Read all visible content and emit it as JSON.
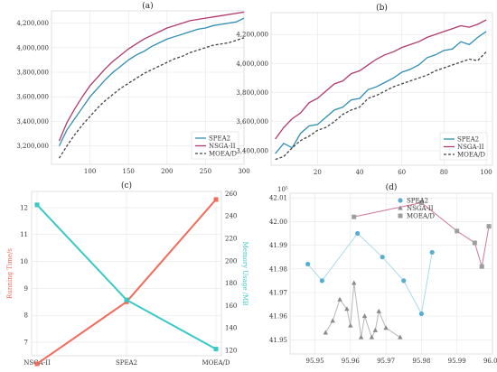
{
  "chart_data": [
    {
      "id": "a",
      "type": "line",
      "title": "(a)",
      "xlabel": "",
      "ylabel": "",
      "xlim": [
        50,
        300
      ],
      "ylim": [
        3050000,
        4300000
      ],
      "xticks": [
        100,
        150,
        200,
        250,
        300
      ],
      "yticks": [
        3200000,
        3400000,
        3600000,
        3800000,
        4000000,
        4200000
      ],
      "ytick_labels": [
        "3,200,000",
        "3,400,000",
        "3,600,000",
        "3,800,000",
        "4,000,000",
        "4,200,000"
      ],
      "grid": true,
      "legend": "bottom-right",
      "x": [
        60,
        70,
        80,
        90,
        100,
        110,
        120,
        130,
        140,
        150,
        160,
        170,
        180,
        190,
        200,
        210,
        220,
        230,
        240,
        250,
        260,
        270,
        280,
        290,
        300
      ],
      "series": [
        {
          "name": "SPEA2",
          "color": "#2f8db3",
          "dash": "solid",
          "values": [
            3200000,
            3330000,
            3420000,
            3510000,
            3600000,
            3670000,
            3740000,
            3800000,
            3850000,
            3900000,
            3940000,
            3970000,
            4010000,
            4040000,
            4070000,
            4090000,
            4110000,
            4130000,
            4150000,
            4160000,
            4180000,
            4190000,
            4200000,
            4210000,
            4240000
          ]
        },
        {
          "name": "NSGA-II",
          "color": "#b03a6e",
          "dash": "solid",
          "values": [
            3240000,
            3390000,
            3500000,
            3600000,
            3690000,
            3760000,
            3830000,
            3890000,
            3940000,
            3990000,
            4030000,
            4070000,
            4100000,
            4130000,
            4160000,
            4180000,
            4200000,
            4220000,
            4230000,
            4240000,
            4250000,
            4260000,
            4270000,
            4280000,
            4290000
          ]
        },
        {
          "name": "MOEA/D",
          "color": "#444444",
          "dash": "dashed",
          "values": [
            3100000,
            3200000,
            3290000,
            3370000,
            3440000,
            3510000,
            3570000,
            3620000,
            3670000,
            3710000,
            3750000,
            3790000,
            3820000,
            3850000,
            3880000,
            3910000,
            3930000,
            3960000,
            3980000,
            4000000,
            4020000,
            4030000,
            4040000,
            4060000,
            4080000
          ]
        }
      ]
    },
    {
      "id": "b",
      "type": "line",
      "title": "(b)",
      "xlabel": "",
      "ylabel": "",
      "xlim": [
        -2,
        103
      ],
      "ylim": [
        3300000,
        4350000
      ],
      "xticks": [
        20,
        40,
        60,
        80,
        100
      ],
      "yticks": [
        3400000,
        3600000,
        3800000,
        4000000,
        4200000
      ],
      "ytick_labels": [
        "3,400,000",
        "3,600,000",
        "3,800,000",
        "4,000,000",
        "4,200,000"
      ],
      "grid": true,
      "legend": "bottom-right",
      "x": [
        0,
        4,
        8,
        12,
        16,
        20,
        24,
        28,
        32,
        36,
        40,
        44,
        48,
        52,
        56,
        60,
        64,
        68,
        72,
        76,
        80,
        84,
        88,
        92,
        96,
        100
      ],
      "series": [
        {
          "name": "SPEA2",
          "color": "#2f8db3",
          "dash": "solid",
          "values": [
            3380000,
            3450000,
            3420000,
            3520000,
            3570000,
            3580000,
            3630000,
            3680000,
            3700000,
            3750000,
            3760000,
            3820000,
            3840000,
            3870000,
            3900000,
            3940000,
            3960000,
            3990000,
            4040000,
            4060000,
            4090000,
            4100000,
            4150000,
            4130000,
            4180000,
            4220000
          ]
        },
        {
          "name": "NSGA-II",
          "color": "#b03a6e",
          "dash": "solid",
          "values": [
            3480000,
            3560000,
            3620000,
            3660000,
            3730000,
            3760000,
            3810000,
            3860000,
            3880000,
            3930000,
            3950000,
            3990000,
            4030000,
            4060000,
            4080000,
            4110000,
            4130000,
            4150000,
            4180000,
            4200000,
            4220000,
            4240000,
            4260000,
            4250000,
            4270000,
            4300000
          ]
        },
        {
          "name": "MOEA/D",
          "color": "#444444",
          "dash": "dashed",
          "values": [
            3340000,
            3360000,
            3420000,
            3470000,
            3500000,
            3540000,
            3560000,
            3600000,
            3650000,
            3680000,
            3700000,
            3760000,
            3780000,
            3810000,
            3840000,
            3860000,
            3880000,
            3900000,
            3920000,
            3950000,
            3970000,
            3990000,
            4010000,
            4030000,
            4020000,
            4080000
          ]
        }
      ]
    },
    {
      "id": "c",
      "type": "line",
      "title": "(c)",
      "categories": [
        "NSGA-II",
        "SPEA2",
        "MOEA/D"
      ],
      "ylabel_left": "Running Time/s",
      "ylabel_right": "Memory Usage /MB",
      "ylim_left": [
        6.5,
        12.6
      ],
      "ylim_right": [
        115,
        262
      ],
      "yticks_left": [
        7,
        8,
        9,
        10,
        11,
        12
      ],
      "yticks_right": [
        120,
        140,
        160,
        180,
        200,
        220,
        240,
        260
      ],
      "grid": true,
      "series": [
        {
          "name": "Running Time/s",
          "axis": "left",
          "color": "#f26b5b",
          "values": [
            6.2,
            8.5,
            12.3
          ]
        },
        {
          "name": "Memory Usage /MB",
          "axis": "right",
          "color": "#38c9c6",
          "values": [
            250,
            165,
            121
          ]
        }
      ]
    },
    {
      "id": "d",
      "type": "scatter",
      "title": "(d)",
      "xlim": [
        95.943,
        96.0
      ],
      "ylim": [
        41.944,
        42.012
      ],
      "xticks": [
        95.95,
        95.96,
        95.97,
        95.98,
        95.99,
        96.0
      ],
      "xtick_labels": [
        "95.95",
        "95.96",
        "95.97",
        "95.98",
        "95.99",
        "96.00"
      ],
      "yticks": [
        41.95,
        41.96,
        41.97,
        41.98,
        41.99,
        42.0,
        42.01
      ],
      "ytick_labels": [
        "41.95",
        "41.96",
        "41.97",
        "41.98",
        "41.99",
        "42.00",
        "42.01"
      ],
      "y_multiplier": "10⁵",
      "legend": "top-center",
      "grid": true,
      "series": [
        {
          "name": "SPEA2",
          "marker": "circle",
          "color": "#58aed1",
          "line": "#a9dbe8",
          "x": [
            95.948,
            95.952,
            95.962,
            95.969,
            95.975,
            95.98,
            95.983
          ],
          "y": [
            41.982,
            41.975,
            41.995,
            41.985,
            41.975,
            41.961,
            41.987
          ]
        },
        {
          "name": "NSGA-II",
          "marker": "triangle",
          "color": "#8a8a8a",
          "line": "#b8b8b8",
          "x": [
            95.953,
            95.955,
            95.957,
            95.959,
            95.96,
            95.961,
            95.963,
            95.964,
            95.966,
            95.967,
            95.968,
            95.97,
            95.974
          ],
          "y": [
            41.953,
            41.958,
            41.967,
            41.963,
            41.956,
            41.974,
            41.951,
            41.96,
            41.951,
            41.954,
            41.962,
            41.955,
            41.951
          ]
        },
        {
          "name": "MOEA/D",
          "marker": "square",
          "color": "#9e9e9e",
          "line": "#cf7a9c",
          "x": [
            95.961,
            95.98,
            95.99,
            95.995,
            95.997,
            95.999
          ],
          "y": [
            42.002,
            42.008,
            41.996,
            41.991,
            41.981,
            41.998
          ]
        }
      ]
    }
  ]
}
